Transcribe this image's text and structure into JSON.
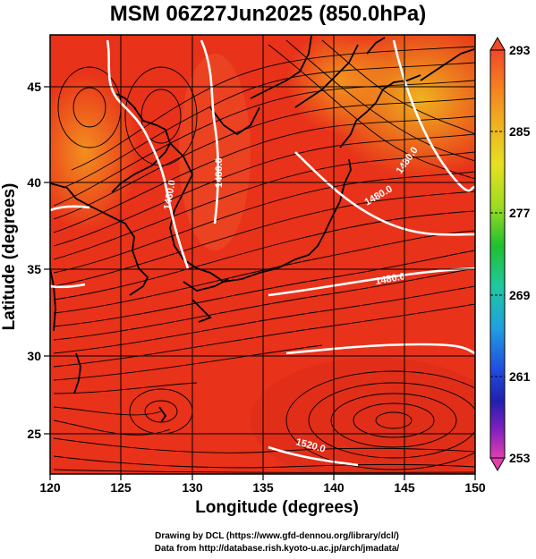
{
  "title": "MSM 06Z27Jun2025 (850.0hPa)",
  "x_axis": {
    "label": "Longitude (degrees)",
    "range": [
      120,
      150
    ],
    "ticks": [
      "120",
      "125",
      "130",
      "135",
      "140",
      "145",
      "150"
    ]
  },
  "y_axis": {
    "label": "Latitude  (degrees)",
    "range": [
      22.4,
      47.6
    ],
    "ticks": [
      "25",
      "30",
      "35",
      "40",
      "45"
    ]
  },
  "colorbar": {
    "range": [
      253,
      293
    ],
    "ticks": [
      "293",
      "285",
      "277",
      "269",
      "261",
      "253"
    ]
  },
  "contour_labels": [
    "1480.0",
    "1480.0",
    "1480.0",
    "1480.0",
    "1480.0",
    "1520.0"
  ],
  "credits": {
    "line1": "Drawing by DCL (https://www.gfd-dennou.org/library/dcl/)",
    "line2": "Data from http://database.rish.kyoto-u.ac.jp/arch/jmadata/"
  },
  "colors": {
    "field_warm": "#e8321a",
    "field_hot": "#f04a1c",
    "field_cool": "#f08a24",
    "coast": "#000000",
    "contour": "#ffffff",
    "streamline": "#000000"
  }
}
